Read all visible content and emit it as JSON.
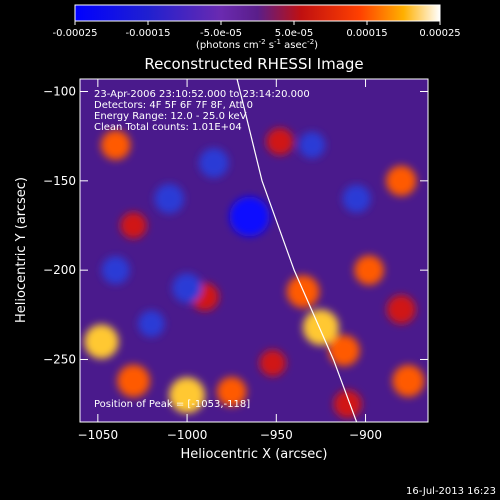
{
  "chart_data": {
    "type": "heatmap",
    "title": "Reconstructed RHESSI Image",
    "xlabel": "Heliocentric X (arcsec)",
    "ylabel": "Heliocentric Y (arcsec)",
    "xlim": [
      -1060,
      -865
    ],
    "ylim": [
      -285,
      -93
    ],
    "xticks": [
      -1050,
      -1000,
      -950,
      -900
    ],
    "yticks": [
      -100,
      -150,
      -200,
      -250
    ],
    "xtick_labels": [
      "−1050",
      "−1000",
      "−950",
      "−900"
    ],
    "ytick_labels": [
      "−100",
      "−150",
      "−200",
      "−250"
    ],
    "annotations": [
      "23-Apr-2006 23:10:52.000 to 23:14:20.000",
      "Detectors: 4F 5F 6F 7F 8F, Att 0",
      "Energy Range: 12.0 - 25.0 keV",
      "Clean    Total counts: 1.01E+04"
    ],
    "peak_label": "Position of Peak = [-1053,-118]",
    "limb_curve": [
      [
        -972,
        -93
      ],
      [
        -958,
        -150
      ],
      [
        -940,
        -200
      ],
      [
        -918,
        -250
      ],
      [
        -905,
        -285
      ]
    ],
    "features": [
      {
        "x": -1040,
        "y": -130,
        "v": 0.00012
      },
      {
        "x": -1030,
        "y": -175,
        "v": 8e-05
      },
      {
        "x": -1048,
        "y": -240,
        "v": 0.00018
      },
      {
        "x": -1030,
        "y": -262,
        "v": 0.00016
      },
      {
        "x": -1000,
        "y": -270,
        "v": 0.0002
      },
      {
        "x": -990,
        "y": -215,
        "v": 0.0001
      },
      {
        "x": -975,
        "y": -268,
        "v": 0.00012
      },
      {
        "x": -948,
        "y": -128,
        "v": 9e-05
      },
      {
        "x": -952,
        "y": -252,
        "v": 8e-05
      },
      {
        "x": -935,
        "y": -212,
        "v": 0.00016
      },
      {
        "x": -925,
        "y": -232,
        "v": 0.0002
      },
      {
        "x": -912,
        "y": -245,
        "v": 0.00014
      },
      {
        "x": -898,
        "y": -200,
        "v": 0.00012
      },
      {
        "x": -880,
        "y": -150,
        "v": 0.00013
      },
      {
        "x": -880,
        "y": -222,
        "v": 0.00011
      },
      {
        "x": -876,
        "y": -262,
        "v": 0.00015
      },
      {
        "x": -910,
        "y": -275,
        "v": 0.0001
      },
      {
        "x": -965,
        "y": -170,
        "v": -0.00025
      },
      {
        "x": -985,
        "y": -140,
        "v": -0.00012
      },
      {
        "x": -1010,
        "y": -160,
        "v": -0.00012
      },
      {
        "x": -1040,
        "y": -200,
        "v": -0.0001
      },
      {
        "x": -1000,
        "y": -210,
        "v": -0.00012
      },
      {
        "x": -1020,
        "y": -230,
        "v": -8e-05
      },
      {
        "x": -930,
        "y": -130,
        "v": -8e-05
      },
      {
        "x": -905,
        "y": -160,
        "v": -0.0001
      }
    ],
    "colorbar": {
      "range": [
        -0.00025,
        0.00025
      ],
      "tick_labels": [
        "-0.00025",
        "-0.00015",
        "-5.0e-05",
        "5.0e-05",
        "0.00015",
        "0.00025"
      ],
      "tick_values": [
        -0.00025,
        -0.00015,
        -5e-05,
        5e-05,
        0.00015,
        0.00025
      ],
      "unit_prefix": "(photons cm",
      "unit_exp1": "-2",
      "unit_mid": " s",
      "unit_exp2": "-1",
      "unit_end": " asec",
      "unit_exp3": "-2",
      "unit_close": ")"
    }
  },
  "footer": {
    "timestamp": "16-Jul-2013 16:23"
  }
}
